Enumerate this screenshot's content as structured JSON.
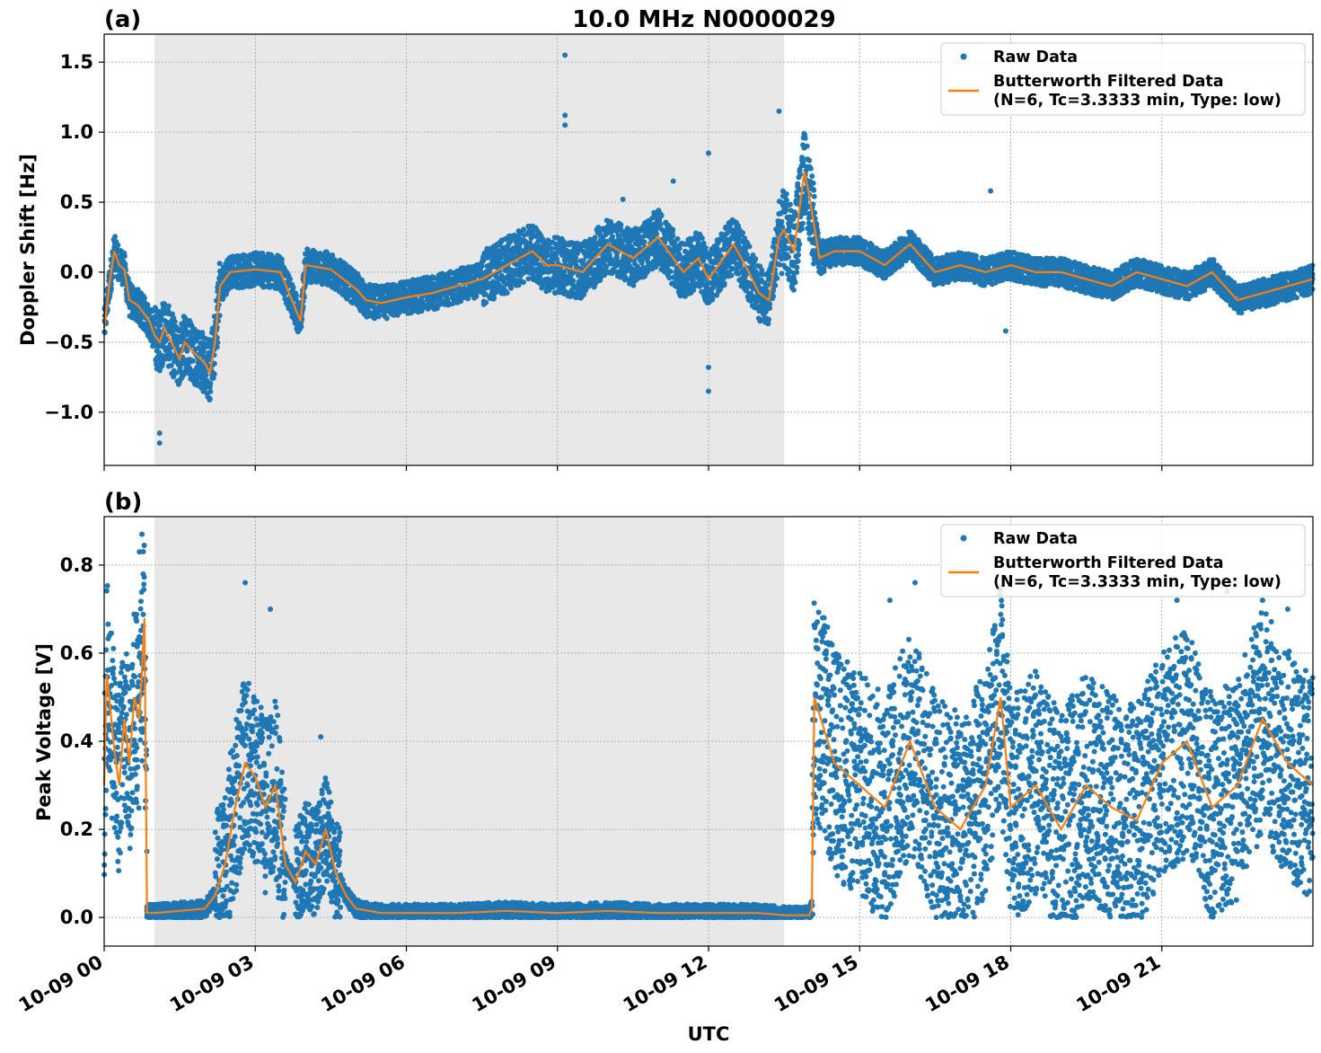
{
  "figure": {
    "title": "10.0 MHz N0000029",
    "xlabel": "UTC",
    "x_tick_labels": [
      "10-09 00",
      "10-09 03",
      "10-09 06",
      "10-09 09",
      "10-09 12",
      "10-09 15",
      "10-09 18",
      "10-09 21"
    ],
    "colors": {
      "raw": "#1f77b4",
      "filtered": "#ff7f0e",
      "shade": "#e8e8e8",
      "grid": "#b0b0b0"
    }
  },
  "chart_data": [
    {
      "panel_label": "(a)",
      "type": "scatter",
      "ylabel": "Doppler Shift [Hz]",
      "xlim_hours": [
        0,
        24
      ],
      "ylim": [
        -1.38,
        1.7
      ],
      "y_ticks": [
        -1.0,
        -0.5,
        0.0,
        0.5,
        1.0,
        1.5
      ],
      "y_tick_labels": [
        "−1.0",
        "−0.5",
        "0.0",
        "0.5",
        "1.0",
        "1.5"
      ],
      "shaded_span_hours": [
        1.0,
        13.5
      ],
      "grid": true,
      "legend": {
        "placement": "top-right",
        "entries": [
          "Raw Data",
          "Butterworth Filtered Data",
          "(N=6, Tc=3.3333 min, Type: low)"
        ]
      },
      "series": [
        {
          "name": "Butterworth Filtered Data",
          "kind": "line",
          "x_hours": [
            0.0,
            0.1,
            0.2,
            0.3,
            0.4,
            0.5,
            0.6,
            0.7,
            0.8,
            0.9,
            1.0,
            1.1,
            1.2,
            1.4,
            1.5,
            1.6,
            1.8,
            2.0,
            2.1,
            2.2,
            2.3,
            2.5,
            3.0,
            3.5,
            3.9,
            4.0,
            4.5,
            5.0,
            5.2,
            5.5,
            6.0,
            6.5,
            7.0,
            7.5,
            8.0,
            8.5,
            8.8,
            9.0,
            9.5,
            10.0,
            10.5,
            11.0,
            11.5,
            11.8,
            12.0,
            12.5,
            12.8,
            13.0,
            13.2,
            13.4,
            13.5,
            13.7,
            13.9,
            14.0,
            14.2,
            14.5,
            15.0,
            15.5,
            16.0,
            16.5,
            17.0,
            17.5,
            18.0,
            18.5,
            19.0,
            19.5,
            20.0,
            20.5,
            21.0,
            21.5,
            22.0,
            22.5,
            23.0,
            23.5,
            24.0
          ],
          "y": [
            -0.4,
            -0.1,
            0.15,
            0.05,
            0.02,
            -0.2,
            -0.22,
            -0.25,
            -0.3,
            -0.35,
            -0.45,
            -0.5,
            -0.4,
            -0.55,
            -0.62,
            -0.5,
            -0.58,
            -0.65,
            -0.72,
            -0.5,
            -0.1,
            0.0,
            0.02,
            0.0,
            -0.35,
            0.05,
            0.02,
            -0.12,
            -0.2,
            -0.22,
            -0.18,
            -0.15,
            -0.1,
            -0.05,
            0.05,
            0.15,
            0.05,
            0.05,
            0.0,
            0.2,
            0.1,
            0.25,
            0.0,
            0.1,
            -0.05,
            0.2,
            0.0,
            -0.15,
            -0.2,
            0.25,
            0.3,
            0.15,
            0.72,
            0.55,
            0.1,
            0.15,
            0.15,
            0.05,
            0.2,
            0.0,
            0.05,
            0.0,
            0.05,
            0.0,
            0.0,
            -0.05,
            -0.1,
            0.0,
            -0.05,
            -0.1,
            0.0,
            -0.2,
            -0.15,
            -0.1,
            -0.05
          ]
        },
        {
          "name": "Raw Data",
          "kind": "scatter",
          "outliers": [
            [
              9.15,
              1.55
            ],
            [
              9.15,
              1.12
            ],
            [
              9.15,
              1.05
            ],
            [
              12.0,
              0.85
            ],
            [
              12.0,
              -0.85
            ],
            [
              12.0,
              -0.68
            ],
            [
              1.1,
              -1.22
            ],
            [
              1.1,
              -1.15
            ],
            [
              13.4,
              1.15
            ],
            [
              11.3,
              0.65
            ],
            [
              10.3,
              0.52
            ],
            [
              17.6,
              0.58
            ],
            [
              17.9,
              -0.42
            ]
          ]
        }
      ]
    },
    {
      "panel_label": "(b)",
      "type": "scatter",
      "ylabel": "Peak Voltage [V]",
      "xlim_hours": [
        0,
        24
      ],
      "ylim": [
        -0.065,
        0.91
      ],
      "y_ticks": [
        0.0,
        0.2,
        0.4,
        0.6,
        0.8
      ],
      "y_tick_labels": [
        "0.0",
        "0.2",
        "0.4",
        "0.6",
        "0.8"
      ],
      "shaded_span_hours": [
        1.0,
        13.5
      ],
      "grid": true,
      "legend": {
        "placement": "top-right",
        "entries": [
          "Raw Data",
          "Butterworth Filtered Data",
          "(N=6, Tc=3.3333 min, Type: low)"
        ]
      },
      "series": [
        {
          "name": "Butterworth Filtered Data",
          "kind": "line",
          "x_hours": [
            0.0,
            0.05,
            0.1,
            0.2,
            0.3,
            0.4,
            0.5,
            0.6,
            0.7,
            0.8,
            0.85,
            0.9,
            1.0,
            1.5,
            2.0,
            2.2,
            2.4,
            2.6,
            2.8,
            3.0,
            3.2,
            3.4,
            3.6,
            3.8,
            4.0,
            4.2,
            4.4,
            4.6,
            4.8,
            5.0,
            5.5,
            6.0,
            7.0,
            8.0,
            9.0,
            10.0,
            11.0,
            12.0,
            13.0,
            13.5,
            14.0,
            14.05,
            14.1,
            14.5,
            15.0,
            15.5,
            16.0,
            16.5,
            17.0,
            17.5,
            17.8,
            18.0,
            18.5,
            19.0,
            19.5,
            20.0,
            20.5,
            21.0,
            21.5,
            22.0,
            22.5,
            23.0,
            23.5,
            24.0
          ],
          "y": [
            0.3,
            0.55,
            0.5,
            0.38,
            0.3,
            0.45,
            0.35,
            0.5,
            0.45,
            0.68,
            0.01,
            0.01,
            0.01,
            0.015,
            0.02,
            0.05,
            0.12,
            0.25,
            0.35,
            0.32,
            0.25,
            0.3,
            0.12,
            0.08,
            0.15,
            0.12,
            0.2,
            0.1,
            0.05,
            0.02,
            0.01,
            0.01,
            0.01,
            0.015,
            0.01,
            0.015,
            0.01,
            0.01,
            0.01,
            0.005,
            0.005,
            0.02,
            0.5,
            0.35,
            0.3,
            0.25,
            0.4,
            0.25,
            0.2,
            0.3,
            0.5,
            0.25,
            0.3,
            0.2,
            0.3,
            0.25,
            0.22,
            0.35,
            0.4,
            0.25,
            0.3,
            0.45,
            0.35,
            0.3
          ]
        },
        {
          "name": "Raw Data",
          "kind": "scatter",
          "outliers": [
            [
              0.75,
              0.87
            ],
            [
              0.7,
              0.83
            ],
            [
              2.8,
              0.76
            ],
            [
              3.3,
              0.7
            ],
            [
              4.3,
              0.41
            ],
            [
              16.1,
              0.76
            ],
            [
              17.8,
              0.75
            ],
            [
              19.8,
              0.75
            ],
            [
              22.3,
              0.74
            ],
            [
              23.0,
              0.72
            ],
            [
              23.5,
              0.7
            ],
            [
              21.3,
              0.72
            ],
            [
              15.6,
              0.72
            ]
          ]
        }
      ]
    }
  ]
}
